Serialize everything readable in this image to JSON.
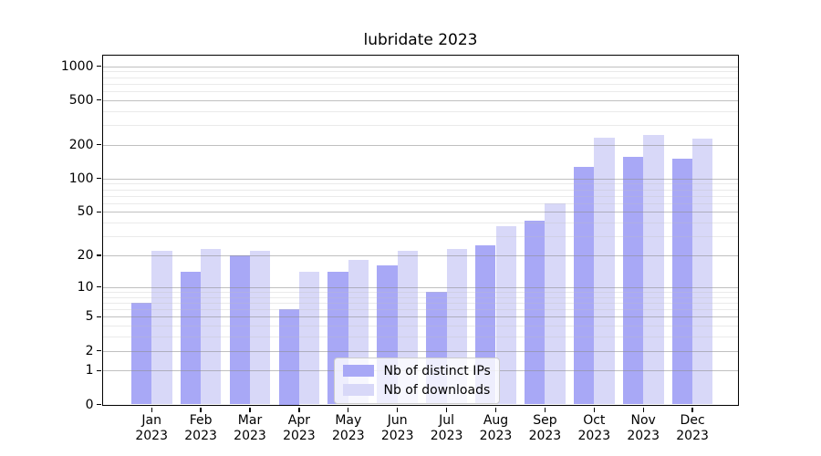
{
  "chart_data": {
    "type": "bar",
    "title": "lubridate 2023",
    "categories": [
      "Jan 2023",
      "Feb 2023",
      "Mar 2023",
      "Apr 2023",
      "May 2023",
      "Jun 2023",
      "Jul 2023",
      "Aug 2023",
      "Sep 2023",
      "Oct 2023",
      "Nov 2023",
      "Dec 2023"
    ],
    "months": [
      "Jan",
      "Feb",
      "Mar",
      "Apr",
      "May",
      "Jun",
      "Jul",
      "Aug",
      "Sep",
      "Oct",
      "Nov",
      "Dec"
    ],
    "year": "2023",
    "series": [
      {
        "name": "Nb of distinct IPs",
        "color": "#a8a8f6",
        "values": [
          7,
          14,
          20,
          6,
          14,
          16,
          9,
          25,
          42,
          128,
          155,
          151
        ]
      },
      {
        "name": "Nb of downloads",
        "color": "#d8d8f8",
        "values": [
          22,
          23,
          22,
          14,
          18,
          22,
          23,
          37,
          60,
          230,
          246,
          227
        ]
      }
    ],
    "yaxis": {
      "scale": "log10(value+1)",
      "tick_values": [
        0,
        1,
        2,
        5,
        10,
        20,
        50,
        100,
        200,
        500,
        1000
      ],
      "minor_grid_values": [
        3,
        4,
        6,
        7,
        8,
        9,
        30,
        40,
        60,
        70,
        80,
        90,
        300,
        400,
        600,
        700,
        800,
        900
      ],
      "ylim": [
        0,
        1258
      ],
      "grid": true
    },
    "legend": {
      "position": "lower center",
      "entries": [
        "Nb of distinct IPs",
        "Nb of downloads"
      ]
    }
  }
}
